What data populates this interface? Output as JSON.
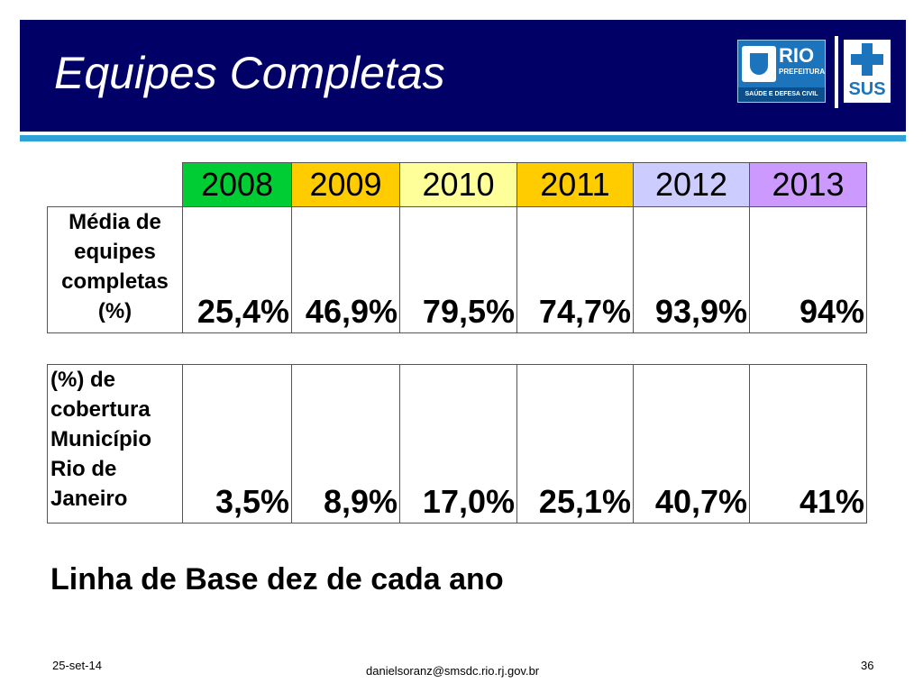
{
  "slide": {
    "title": "Equipes Completas",
    "baseline_note": "Linha de Base dez de cada ano"
  },
  "logos": {
    "rio": {
      "name": "RIO",
      "subtitle": "PREFEITURA",
      "department": "SAÚDE E DEFESA CIVIL",
      "color": "#1c75bc"
    },
    "sus": {
      "name": "SUS",
      "color": "#1c75bc"
    }
  },
  "table": {
    "years": [
      {
        "label": "2008",
        "color": "#00cc33"
      },
      {
        "label": "2009",
        "color": "#ffcc00"
      },
      {
        "label": "2010",
        "color": "#ffff99"
      },
      {
        "label": "2011",
        "color": "#ffcc00"
      },
      {
        "label": "2012",
        "color": "#ccccff"
      },
      {
        "label": "2013",
        "color": "#cc99ff"
      }
    ],
    "rows": [
      {
        "label": "Média de equipes completas (%)",
        "values": [
          "25,4%",
          "46,9%",
          "79,5%",
          "74,7%",
          "93,9%",
          "94%"
        ]
      },
      {
        "label": "(%) de cobertura Município Rio de Janeiro",
        "values": [
          "3,5%",
          "8,9%",
          "17,0%",
          "25,1%",
          "40,7%",
          "41%"
        ]
      }
    ]
  },
  "footer": {
    "date": "25-set-14",
    "email": "danielsoranz@smsdc.rio.rj.gov.br",
    "page": "36"
  },
  "colors": {
    "header_bg": "#000066",
    "accent_rule": "#2ea2d6"
  }
}
